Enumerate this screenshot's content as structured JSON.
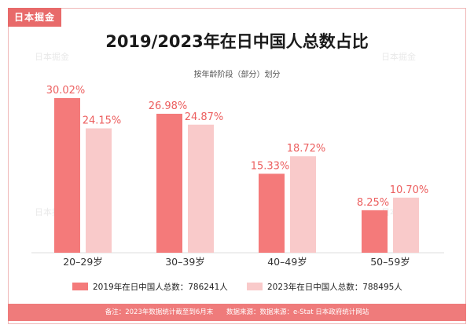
{
  "brand": "日本掘金",
  "watermark": "日本掘金",
  "colors": {
    "series_2019": "#f47a7a",
    "series_2023": "#f9caca",
    "axis": "#dddddd",
    "label_2019": "#ec5f5f",
    "label_2023": "#ec5f5f",
    "footer_bg": "#ef7b7b"
  },
  "chart_data": {
    "type": "bar",
    "title": "2019/2023年在日中国人总数占比",
    "subtitle": "按年龄阶段（部分）划分",
    "categories": [
      "20–29岁",
      "30–39岁",
      "40–49岁",
      "50–59岁"
    ],
    "series": [
      {
        "name": "2019年在日中国人总数：786241人",
        "values": [
          30.02,
          26.98,
          15.33,
          8.25
        ],
        "labels": [
          "30.02%",
          "26.98%",
          "15.33%",
          "8.25%"
        ]
      },
      {
        "name": "2023年在日中国人总数：788495人",
        "values": [
          24.15,
          24.87,
          18.72,
          10.7
        ],
        "labels": [
          "24.15%",
          "24.87%",
          "18.72%",
          "10.70%"
        ]
      }
    ],
    "unit": "%",
    "ylim": [
      0,
      32
    ]
  },
  "footer": {
    "note": "备注：2023年数据统计截至到6月末",
    "source": "数据来源：数据来源：e-Stat 日本政府统计网站"
  }
}
